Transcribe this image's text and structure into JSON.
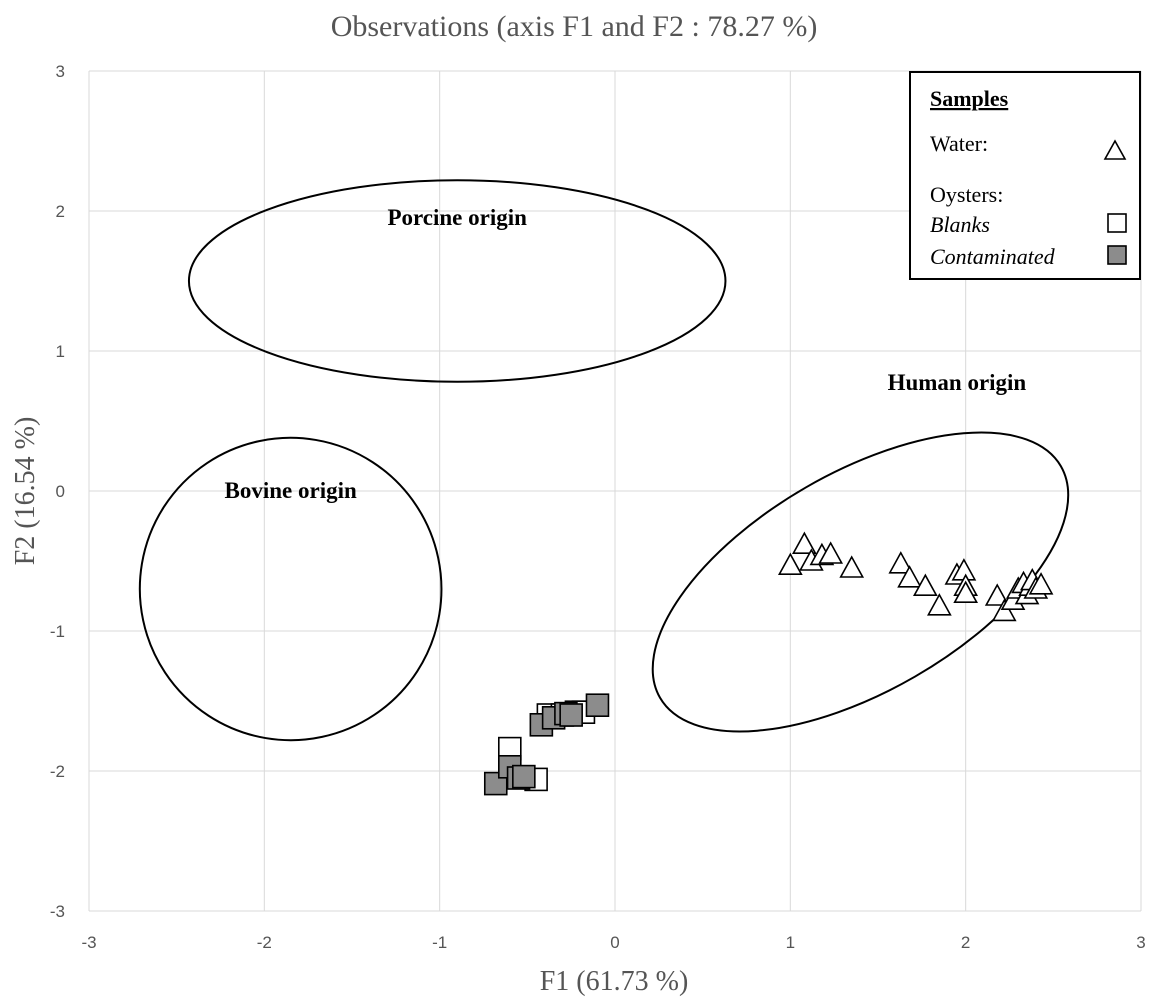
{
  "chart_data": {
    "type": "scatter",
    "title": "Observations (axis F1 and F2 : 78.27 %)",
    "xlabel": "F1 (61.73 %)",
    "ylabel": "F2 (16.54 %)",
    "xlim": [
      -3,
      3
    ],
    "ylim": [
      -3,
      3
    ],
    "xticks": [
      "-3",
      "-2",
      "-1",
      "0",
      "1",
      "2",
      "3"
    ],
    "yticks": [
      "3",
      "2",
      "1",
      "0",
      "-1",
      "-2",
      "-3"
    ],
    "grid": true,
    "legend": {
      "placement": "top-right",
      "header": "Samples",
      "water_label": "Water:",
      "oysters_label": "Oysters:",
      "blanks_label": "Blanks",
      "contaminated_label": "Contaminated"
    },
    "regions": [
      {
        "label": "Porcine origin",
        "cx": -0.9,
        "cy": 1.5,
        "rx": 1.53,
        "ry": 0.72,
        "angle": 0,
        "label_x": -0.9,
        "label_y": 1.9
      },
      {
        "label": "Bovine origin",
        "cx": -1.85,
        "cy": -0.7,
        "rx": 0.86,
        "ry": 1.08,
        "angle": -12,
        "label_x": -1.85,
        "label_y": -0.05
      },
      {
        "label": "Human origin",
        "cx": 1.4,
        "cy": -0.65,
        "rx": 1.32,
        "ry": 0.78,
        "angle": -30,
        "label_x": 1.95,
        "label_y": 0.72
      }
    ],
    "series": [
      {
        "name": "Water",
        "marker": "triangle",
        "color": "#ffffff",
        "points": [
          [
            1.0,
            -0.53
          ],
          [
            1.08,
            -0.38
          ],
          [
            1.12,
            -0.5
          ],
          [
            1.18,
            -0.46
          ],
          [
            1.23,
            -0.45
          ],
          [
            1.35,
            -0.55
          ],
          [
            1.63,
            -0.52
          ],
          [
            1.68,
            -0.62
          ],
          [
            1.77,
            -0.68
          ],
          [
            1.85,
            -0.82
          ],
          [
            1.95,
            -0.6
          ],
          [
            1.99,
            -0.57
          ],
          [
            2.0,
            -0.68
          ],
          [
            2.0,
            -0.73
          ],
          [
            2.18,
            -0.75
          ],
          [
            2.22,
            -0.86
          ],
          [
            2.27,
            -0.78
          ],
          [
            2.3,
            -0.7
          ],
          [
            2.33,
            -0.66
          ],
          [
            2.35,
            -0.74
          ],
          [
            2.37,
            -0.68
          ],
          [
            2.38,
            -0.64
          ],
          [
            2.4,
            -0.7
          ],
          [
            2.43,
            -0.67
          ]
        ]
      },
      {
        "name": "Blanks",
        "marker": "square",
        "color": "#ffffff",
        "points": [
          [
            -0.6,
            -1.84
          ],
          [
            -0.45,
            -2.06
          ],
          [
            -0.38,
            -1.6
          ],
          [
            -0.3,
            -1.6
          ],
          [
            -0.22,
            -1.58
          ],
          [
            -0.18,
            -1.58
          ]
        ]
      },
      {
        "name": "Contaminated",
        "marker": "square",
        "color": "#8c8c8c",
        "points": [
          [
            -0.68,
            -2.09
          ],
          [
            -0.6,
            -1.97
          ],
          [
            -0.55,
            -2.05
          ],
          [
            -0.52,
            -2.04
          ],
          [
            -0.42,
            -1.67
          ],
          [
            -0.35,
            -1.62
          ],
          [
            -0.28,
            -1.59
          ],
          [
            -0.25,
            -1.6
          ],
          [
            -0.1,
            -1.53
          ]
        ]
      }
    ]
  }
}
